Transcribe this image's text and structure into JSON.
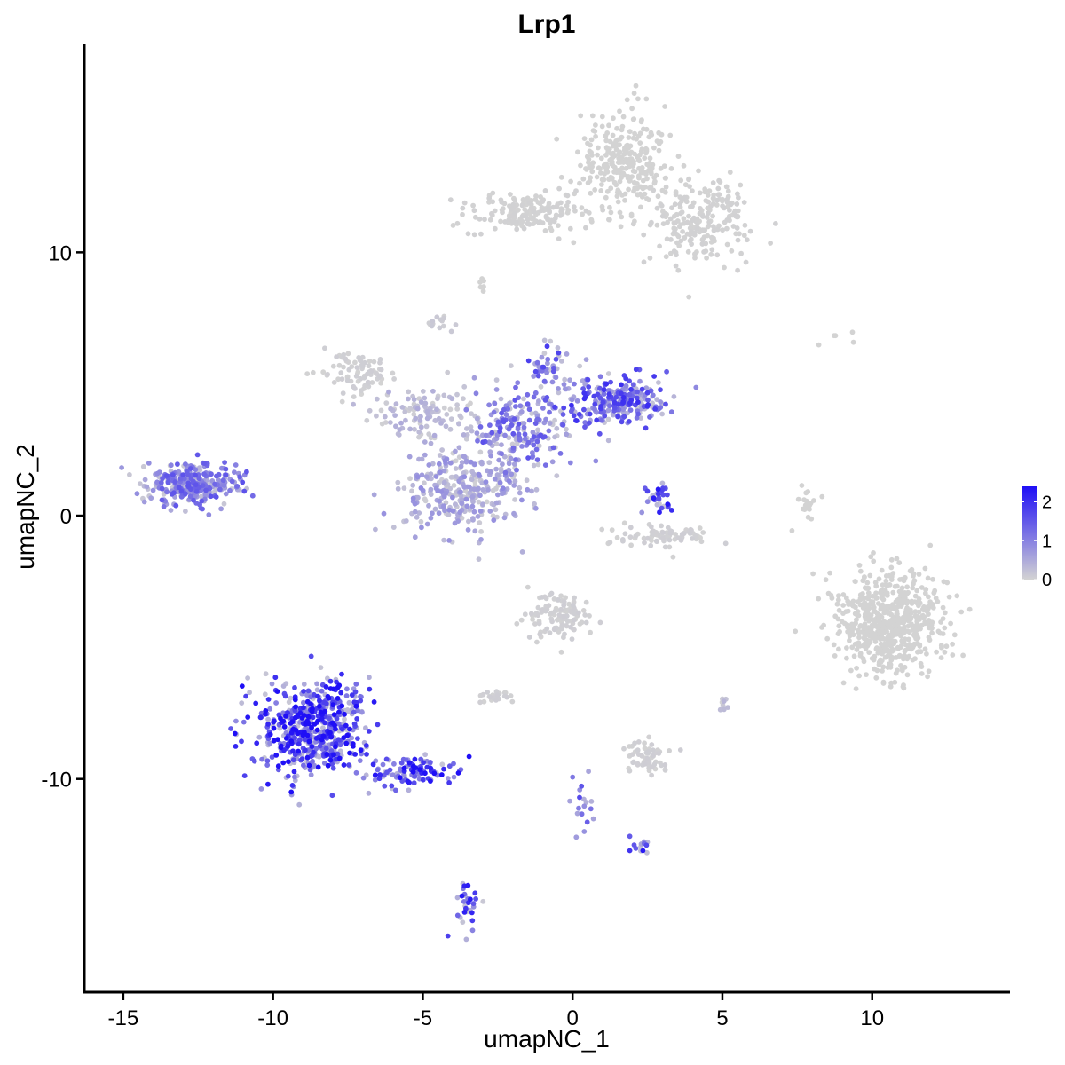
{
  "chart_data": {
    "type": "scatter",
    "title": "Lrp1",
    "xlabel": "umapNC_1",
    "ylabel": "umapNC_2",
    "xlim": [
      -16.3,
      14.6
    ],
    "ylim": [
      -18.1,
      17.9
    ],
    "x_ticks": [
      -15,
      -10,
      -5,
      0,
      5,
      10
    ],
    "x_tick_labels": [
      "-15",
      "-10",
      "-5",
      "0",
      "5",
      "10"
    ],
    "y_ticks": [
      10,
      0,
      -10
    ],
    "y_tick_labels": [
      "10",
      "0",
      "-10"
    ],
    "grid": false,
    "legend": {
      "placement": "right",
      "type": "colorbar",
      "min": 0,
      "max": 2.4,
      "ticks": [
        0,
        1,
        2
      ],
      "tick_labels": [
        "0",
        "1",
        "2"
      ],
      "low_color": "#d3d3d3",
      "high_color": "#1f0ff6"
    },
    "clusters": [
      {
        "name": "",
        "cx": 1.8,
        "cy": 13.5,
        "sx": 1.0,
        "sy": 1.3,
        "n": 280,
        "expr": 0.0
      },
      {
        "name": "",
        "cx": 4.3,
        "cy": 11.2,
        "sx": 1.1,
        "sy": 1.0,
        "n": 220,
        "expr": 0.02
      },
      {
        "name": "",
        "cx": -1.5,
        "cy": 11.5,
        "sx": 1.5,
        "sy": 0.5,
        "n": 170,
        "expr": 0.02
      },
      {
        "name": "",
        "cx": -3.0,
        "cy": 8.8,
        "sx": 0.2,
        "sy": 0.4,
        "n": 6,
        "expr": 0.0
      },
      {
        "name": "",
        "cx": -4.4,
        "cy": 7.3,
        "sx": 0.3,
        "sy": 0.3,
        "n": 14,
        "expr": 0.1
      },
      {
        "name": "",
        "cx": -7.2,
        "cy": 5.5,
        "sx": 0.8,
        "sy": 0.5,
        "n": 80,
        "expr": 0.05
      },
      {
        "name": "",
        "cx": -5.0,
        "cy": 4.0,
        "sx": 1.3,
        "sy": 0.6,
        "n": 110,
        "expr": 0.35
      },
      {
        "name": "",
        "cx": -3.7,
        "cy": 1.0,
        "sx": 1.3,
        "sy": 1.1,
        "n": 320,
        "expr": 0.6
      },
      {
        "name": "",
        "cx": -1.6,
        "cy": 3.3,
        "sx": 1.1,
        "sy": 0.9,
        "n": 200,
        "expr": 1.1
      },
      {
        "name": "",
        "cx": 1.5,
        "cy": 4.3,
        "sx": 1.2,
        "sy": 0.6,
        "n": 260,
        "expr": 1.4
      },
      {
        "name": "",
        "cx": -0.9,
        "cy": 5.6,
        "sx": 0.5,
        "sy": 0.6,
        "n": 50,
        "expr": 1.3
      },
      {
        "name": "",
        "cx": -2.3,
        "cy": 1.2,
        "sx": 0.5,
        "sy": 0.7,
        "n": 20,
        "expr": 0.8
      },
      {
        "name": "",
        "cx": -12.8,
        "cy": 1.2,
        "sx": 1.0,
        "sy": 0.5,
        "n": 330,
        "expr": 1.1
      },
      {
        "name": "",
        "cx": 2.9,
        "cy": 0.6,
        "sx": 0.3,
        "sy": 0.4,
        "n": 30,
        "expr": 1.6
      },
      {
        "name": "",
        "cx": 3.2,
        "cy": -0.8,
        "sx": 1.0,
        "sy": 0.3,
        "n": 80,
        "expr": 0.05
      },
      {
        "name": "",
        "cx": 7.9,
        "cy": 0.4,
        "sx": 0.25,
        "sy": 0.5,
        "n": 20,
        "expr": 0.0
      },
      {
        "name": "",
        "cx": 10.6,
        "cy": -4.1,
        "sx": 1.2,
        "sy": 1.3,
        "n": 620,
        "expr": 0.0
      },
      {
        "name": "",
        "cx": -0.5,
        "cy": -3.8,
        "sx": 0.7,
        "sy": 0.6,
        "n": 110,
        "expr": 0.05
      },
      {
        "name": "",
        "cx": -8.6,
        "cy": -8.1,
        "sx": 1.2,
        "sy": 1.2,
        "n": 560,
        "expr": 1.9
      },
      {
        "name": "",
        "cx": -5.3,
        "cy": -9.7,
        "sx": 0.9,
        "sy": 0.4,
        "n": 110,
        "expr": 1.8
      },
      {
        "name": "",
        "cx": -3.5,
        "cy": -14.8,
        "sx": 0.25,
        "sy": 0.7,
        "n": 30,
        "expr": 1.6
      },
      {
        "name": "",
        "cx": 0.3,
        "cy": -11.2,
        "sx": 0.3,
        "sy": 0.7,
        "n": 18,
        "expr": 1.2
      },
      {
        "name": "",
        "cx": 2.3,
        "cy": -12.5,
        "sx": 0.3,
        "sy": 0.2,
        "n": 14,
        "expr": 1.6
      },
      {
        "name": "",
        "cx": 2.5,
        "cy": -9.2,
        "sx": 0.5,
        "sy": 0.4,
        "n": 60,
        "expr": 0.05
      },
      {
        "name": "",
        "cx": -2.6,
        "cy": -6.9,
        "sx": 0.5,
        "sy": 0.2,
        "n": 22,
        "expr": 0.05
      },
      {
        "name": "",
        "cx": 5.0,
        "cy": -7.2,
        "sx": 0.15,
        "sy": 0.2,
        "n": 8,
        "expr": 0.3
      },
      {
        "name": "",
        "cx": 9.3,
        "cy": 6.8,
        "sx": 0.5,
        "sy": 0.15,
        "n": 5,
        "expr": 0.0
      }
    ]
  }
}
